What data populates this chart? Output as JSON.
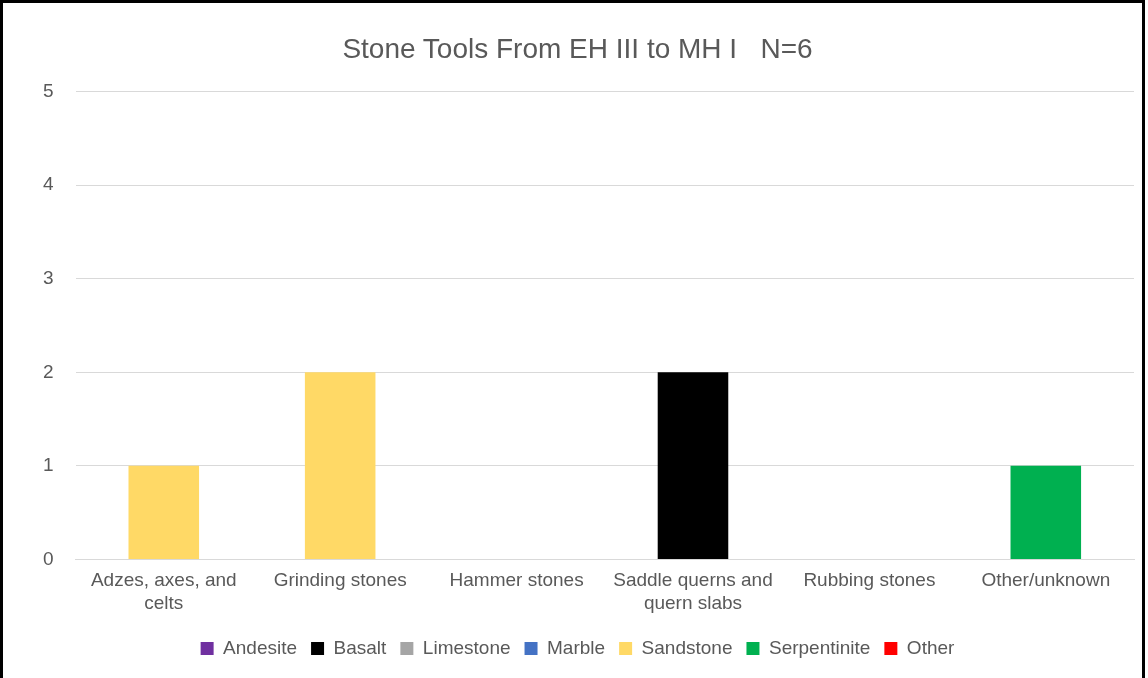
{
  "chart_data": {
    "type": "bar",
    "stacked": true,
    "title": "Stone Tools From EH III to MH I   N=6",
    "categories": [
      "Adzes, axes, and celts",
      "Grinding stones",
      "Hammer stones",
      "Saddle querns and quern slabs",
      "Rubbing stones",
      "Other/unknown"
    ],
    "series": [
      {
        "name": "Andesite",
        "color": "#7030a0",
        "values": [
          0,
          0,
          0,
          0,
          0,
          0
        ]
      },
      {
        "name": "Basalt",
        "color": "#000000",
        "values": [
          0,
          0,
          0,
          2,
          0,
          0
        ]
      },
      {
        "name": "Limestone",
        "color": "#a5a5a5",
        "values": [
          0,
          0,
          0,
          0,
          0,
          0
        ]
      },
      {
        "name": "Marble",
        "color": "#4472c4",
        "values": [
          0,
          0,
          0,
          0,
          0,
          0
        ]
      },
      {
        "name": "Sandstone",
        "color": "#ffd966",
        "values": [
          1,
          2,
          0,
          0,
          0,
          0
        ]
      },
      {
        "name": "Serpentinite",
        "color": "#00b050",
        "values": [
          0,
          0,
          0,
          0,
          0,
          1
        ]
      },
      {
        "name": "Other",
        "color": "#ff0000",
        "values": [
          0,
          0,
          0,
          0,
          0,
          0
        ]
      }
    ],
    "ylim": [
      0,
      5
    ],
    "yticks": [
      0,
      1,
      2,
      3,
      4,
      5
    ],
    "grid": "y",
    "legend": "bottom"
  }
}
